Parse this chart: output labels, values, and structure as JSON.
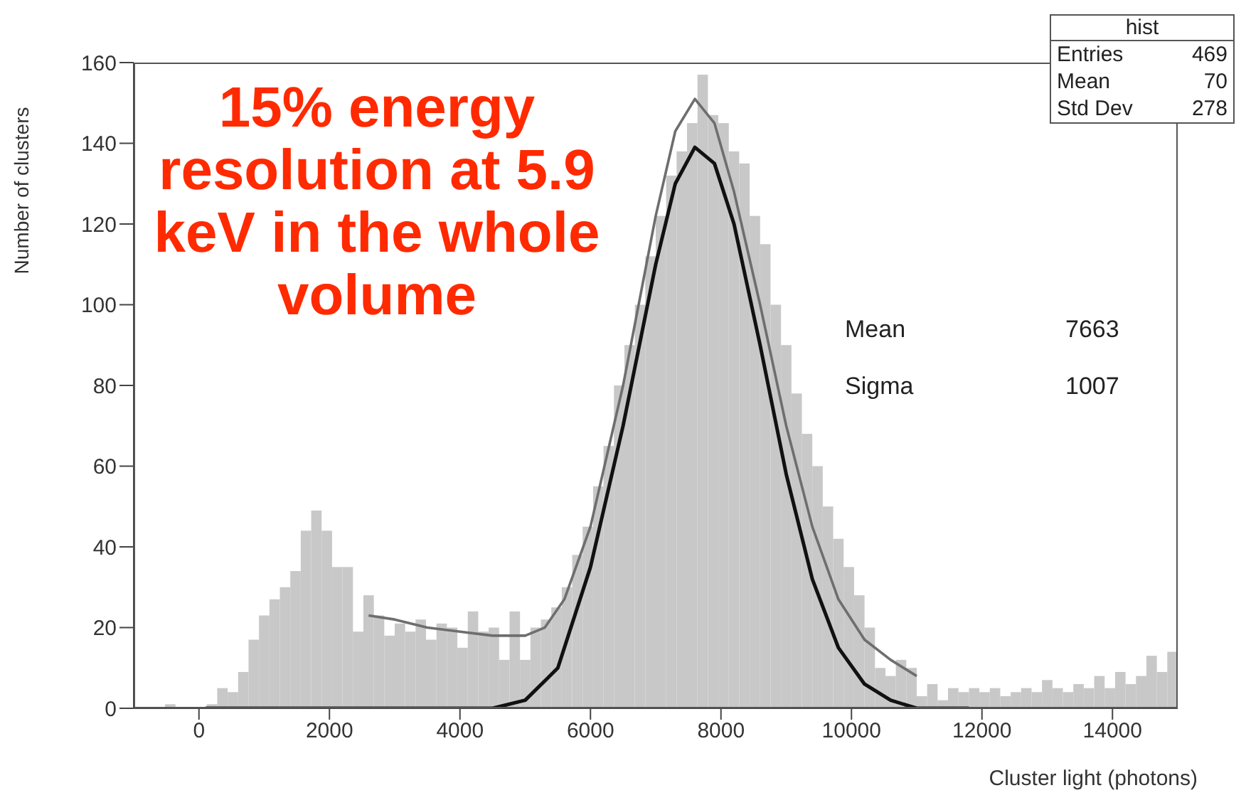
{
  "chart_data": {
    "type": "histogram",
    "xlabel": "Cluster light (photons)",
    "ylabel": "Number of clusters",
    "xlim": [
      -1000,
      15000
    ],
    "xticks": [
      0,
      2000,
      4000,
      6000,
      8000,
      10000,
      12000,
      14000
    ],
    "ylim": [
      0,
      160
    ],
    "yticks": [
      0,
      20,
      40,
      60,
      80,
      100,
      120,
      140,
      160
    ],
    "bins": [
      -1000,
      -840,
      -680,
      -520,
      -360,
      -200,
      -40,
      120,
      280,
      440,
      600,
      760,
      920,
      1080,
      1240,
      1400,
      1560,
      1720,
      1880,
      2040,
      2200,
      2360,
      2520,
      2680,
      2840,
      3000,
      3160,
      3320,
      3480,
      3640,
      3800,
      3960,
      4120,
      4280,
      4440,
      4600,
      4760,
      4920,
      5080,
      5240,
      5400,
      5560,
      5720,
      5880,
      6040,
      6200,
      6360,
      6520,
      6680,
      6840,
      7000,
      7160,
      7320,
      7480,
      7640,
      7800,
      7960,
      8120,
      8280,
      8440,
      8600,
      8760,
      8920,
      9080,
      9240,
      9400,
      9560,
      9720,
      9880,
      10040,
      10200,
      10360,
      10520,
      10680,
      10840,
      11000,
      11160,
      11320,
      11480,
      11640,
      11800,
      11960,
      12120,
      12280,
      12440,
      12600,
      12760,
      12920,
      13080,
      13240,
      13400,
      13560,
      13720,
      13880,
      14040,
      14200,
      14360,
      14520,
      14680,
      14840,
      15000
    ],
    "series": [
      {
        "type": "histogram",
        "color": "#c8c8c8",
        "values": [
          0,
          0,
          0,
          1,
          0,
          0,
          0,
          1,
          5,
          4,
          9,
          17,
          23,
          27,
          30,
          34,
          44,
          49,
          44,
          35,
          35,
          19,
          28,
          23,
          18,
          21,
          19,
          22,
          17,
          21,
          20,
          15,
          24,
          19,
          20,
          12,
          24,
          12,
          20,
          22,
          25,
          30,
          38,
          45,
          55,
          65,
          80,
          90,
          100,
          112,
          122,
          132,
          138,
          145,
          157,
          147,
          145,
          138,
          135,
          122,
          115,
          100,
          90,
          78,
          68,
          60,
          50,
          42,
          35,
          28,
          20,
          10,
          8,
          12,
          10,
          3,
          6,
          2,
          5,
          4,
          5,
          4,
          5,
          3,
          4,
          5,
          4,
          7,
          5,
          4,
          6,
          5,
          8,
          5,
          9,
          6,
          8,
          13,
          9,
          14
        ]
      },
      {
        "type": "line",
        "color": "#6e6e6e",
        "x": [
          2600,
          3000,
          3500,
          4000,
          4500,
          5000,
          5300,
          5600,
          6000,
          6500,
          7000,
          7300,
          7600,
          7900,
          8200,
          8600,
          9000,
          9400,
          9800,
          10200,
          10600,
          11000
        ],
        "values": [
          23,
          22,
          20,
          19,
          18,
          18,
          20,
          27,
          45,
          80,
          122,
          143,
          151,
          145,
          128,
          100,
          70,
          45,
          27,
          17,
          12,
          8
        ]
      },
      {
        "type": "line",
        "color": "#111111",
        "x": [
          100,
          4500,
          5000,
          5500,
          6000,
          6500,
          7000,
          7300,
          7600,
          7900,
          8200,
          8600,
          9000,
          9400,
          9800,
          10200,
          10600,
          11000,
          11800
        ],
        "values": [
          0,
          0,
          2,
          10,
          35,
          70,
          110,
          130,
          139,
          135,
          120,
          90,
          58,
          32,
          15,
          6,
          2,
          0,
          0
        ]
      }
    ],
    "annotations": [
      "15% energy resolution at 5.9 keV in the whole volume",
      "Mean",
      "7663",
      "Sigma",
      "1007",
      "hist",
      "Entries",
      "469",
      "Mean",
      "70",
      "Std Dev",
      "278"
    ]
  }
}
